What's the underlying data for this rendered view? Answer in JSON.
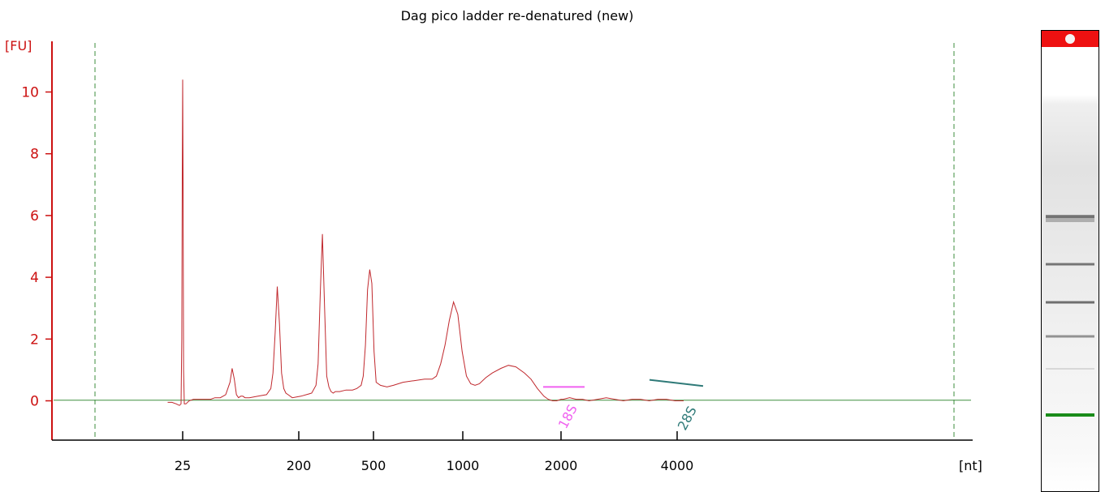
{
  "chart_data": {
    "type": "line",
    "title": "Dag pico ladder re-denatured (new)",
    "ylabel": "[FU]",
    "xlabel": "[nt]",
    "ylim": [
      -1.2,
      11.8
    ],
    "y_ticks": [
      0,
      2,
      4,
      6,
      8,
      10
    ],
    "x_tick_labels": [
      "25",
      "200",
      "500",
      "1000",
      "2000",
      "4000"
    ],
    "x_scale": "categorical ladder positions (non-linear)",
    "grid": false,
    "series": [
      {
        "color": "#c0282d",
        "x": [
          -14,
          -10,
          -6,
          -3,
          -1.5,
          -0.8,
          -0.4,
          0,
          0.4,
          0.8,
          1.5,
          3,
          6,
          10,
          18,
          22,
          26,
          30,
          35,
          40,
          44,
          46,
          48,
          50,
          52,
          54,
          56,
          58,
          62,
          70,
          78,
          82,
          84,
          86,
          88,
          90,
          92,
          94,
          96,
          98,
          102,
          110,
          120,
          124,
          126,
          128,
          130,
          132,
          134,
          136,
          138,
          140,
          142,
          146,
          152,
          158,
          162,
          164,
          166,
          168,
          170,
          172,
          174,
          176,
          178,
          180,
          184,
          190,
          196,
          205,
          215,
          225,
          232,
          236,
          240,
          244,
          248,
          252,
          256,
          260,
          264,
          268,
          272,
          276,
          282,
          288,
          296,
          303,
          310,
          318,
          324,
          330,
          336,
          340,
          344,
          348,
          352,
          354,
          360,
          366,
          372,
          378,
          386,
          394,
          402,
          410,
          418,
          426,
          434,
          442,
          450,
          458,
          466
        ],
        "y": [
          -0.05,
          -0.05,
          -0.1,
          -0.15,
          -0.1,
          2.0,
          7.5,
          10.4,
          7.0,
          1.0,
          -0.1,
          -0.1,
          0.0,
          0.05,
          0.05,
          0.05,
          0.05,
          0.1,
          0.1,
          0.2,
          0.6,
          1.05,
          0.7,
          0.2,
          0.1,
          0.15,
          0.15,
          0.1,
          0.1,
          0.15,
          0.2,
          0.4,
          0.9,
          2.2,
          3.7,
          2.5,
          0.9,
          0.4,
          0.25,
          0.2,
          0.1,
          0.15,
          0.25,
          0.5,
          1.2,
          3.5,
          5.4,
          3.0,
          0.8,
          0.45,
          0.3,
          0.25,
          0.3,
          0.3,
          0.35,
          0.35,
          0.4,
          0.45,
          0.5,
          0.8,
          1.8,
          3.6,
          4.25,
          3.8,
          1.6,
          0.6,
          0.5,
          0.45,
          0.5,
          0.6,
          0.65,
          0.7,
          0.7,
          0.8,
          1.2,
          1.8,
          2.6,
          3.2,
          2.8,
          1.6,
          0.8,
          0.55,
          0.5,
          0.55,
          0.75,
          0.9,
          1.05,
          1.15,
          1.1,
          0.9,
          0.7,
          0.4,
          0.15,
          0.05,
          0.0,
          0.0,
          0.05,
          0.05,
          0.1,
          0.05,
          0.05,
          0.0,
          0.05,
          0.1,
          0.05,
          0.0,
          0.05,
          0.05,
          0.0,
          0.05,
          0.05,
          0.0,
          0.0
        ]
      }
    ],
    "baseline": {
      "color": "#3e8e3e",
      "y": 0.02
    },
    "peaks": [
      {
        "label": "18S",
        "color": "#f060f0",
        "x_tick": "2000"
      },
      {
        "label": "28S",
        "color": "#2f7a78",
        "x_tick": "4000"
      }
    ],
    "colors": {
      "axis": "#cc1111",
      "trace": "#c0282d",
      "marker_line": "#3e8e3e",
      "gel_marker": "#1a8c1a",
      "gel_header": "#ee1111"
    }
  }
}
